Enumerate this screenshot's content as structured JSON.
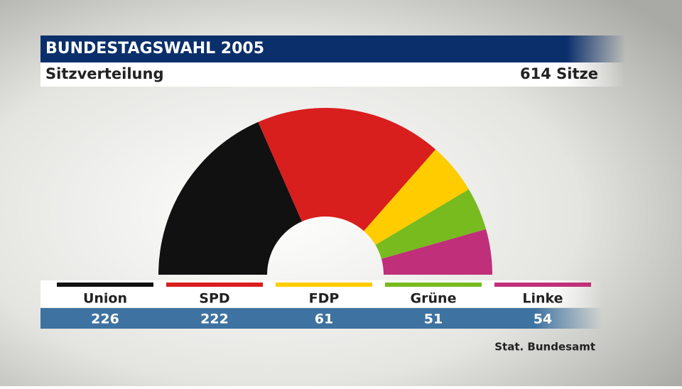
{
  "chart_data": {
    "type": "half-donut",
    "title": "BUNDESTAGSWAHL 2005",
    "subtitle": "Sitzverteilung",
    "total_label": "614 Sitze",
    "categories": [
      "Union",
      "SPD",
      "FDP",
      "Grüne",
      "Linke"
    ],
    "values": [
      226,
      222,
      61,
      51,
      54
    ],
    "colors": [
      "#111111",
      "#d91e1e",
      "#ffcc00",
      "#77bb1e",
      "#c0307a"
    ],
    "source": "Stat. Bundesamt"
  }
}
